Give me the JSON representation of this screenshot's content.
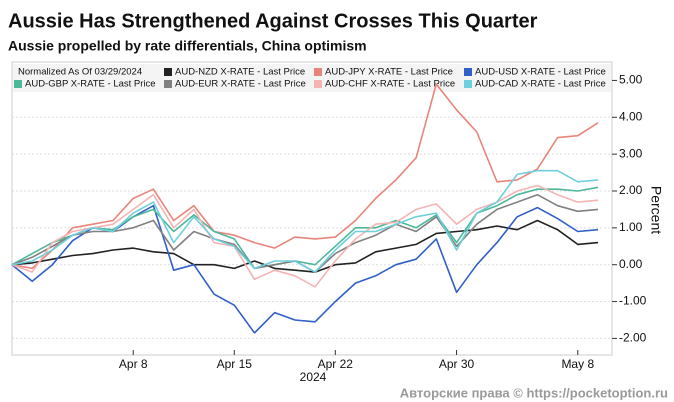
{
  "chart_data": {
    "type": "line",
    "title": "Aussie Has Strengthened Against Crosses This Quarter",
    "subtitle": "Aussie propelled by rate differentials, China optimism",
    "legend_title": "Normalized As Of 03/29/2024",
    "legend_position": "top",
    "y_label": "Percent",
    "x_note": "2024",
    "watermark": "Авторские права © https://pocketoption.ru",
    "grid": true,
    "categories": [
      null,
      null,
      null,
      null,
      null,
      null,
      "Apr 8",
      null,
      null,
      null,
      null,
      "Apr 15",
      null,
      null,
      null,
      null,
      "Apr 22",
      null,
      null,
      null,
      null,
      null,
      "Apr 30",
      null,
      null,
      null,
      null,
      null,
      "May 8",
      null
    ],
    "ylim": [
      -2.45,
      5.5
    ],
    "yticks": [
      {
        "value": 5,
        "label": "5.00"
      },
      {
        "value": 4,
        "label": "4.00"
      },
      {
        "value": 3,
        "label": "3.00"
      },
      {
        "value": 2,
        "label": "2.00"
      },
      {
        "value": 1,
        "label": "1.00"
      },
      {
        "value": 0,
        "label": "0.00"
      },
      {
        "value": -1,
        "label": "-1.00"
      },
      {
        "value": -2,
        "label": "-2.00"
      }
    ],
    "series": [
      {
        "name": "AUD-NZD X-RATE - Last Price",
        "color": "#222222",
        "values": [
          0,
          0.05,
          0.15,
          0.25,
          0.3,
          0.4,
          0.45,
          0.35,
          0.3,
          0.0,
          0.0,
          -0.1,
          0.1,
          -0.1,
          -0.15,
          -0.2,
          0.0,
          0.05,
          0.35,
          0.45,
          0.55,
          0.85,
          0.9,
          0.95,
          1.05,
          0.95,
          1.2,
          0.95,
          0.55,
          0.6
        ]
      },
      {
        "name": "AUD-JPY X-RATE - Last Price",
        "color": "#e8857a",
        "values": [
          0,
          -0.1,
          0.4,
          1.0,
          1.1,
          1.2,
          1.8,
          2.05,
          1.2,
          1.6,
          0.9,
          0.8,
          0.6,
          0.45,
          0.75,
          0.7,
          0.75,
          1.2,
          1.8,
          2.3,
          2.9,
          4.9,
          4.2,
          3.6,
          2.25,
          2.3,
          2.6,
          3.45,
          3.5,
          3.85
        ]
      },
      {
        "name": "AUD-USD X-RATE - Last Price",
        "color": "#3060c8",
        "values": [
          0,
          -0.45,
          0.0,
          0.65,
          1.0,
          0.9,
          1.3,
          1.6,
          -0.15,
          0.0,
          -0.8,
          -1.1,
          -1.85,
          -1.3,
          -1.5,
          -1.55,
          -1.0,
          -0.5,
          -0.3,
          0.0,
          0.15,
          0.7,
          -0.75,
          0.0,
          0.6,
          1.3,
          1.55,
          1.25,
          0.9,
          0.95
        ]
      },
      {
        "name": "AUD-GBP X-RATE - Last Price",
        "color": "#4db89a",
        "values": [
          0,
          0.3,
          0.6,
          0.8,
          1.0,
          0.95,
          1.3,
          1.5,
          0.9,
          1.35,
          0.9,
          0.7,
          -0.1,
          0.0,
          0.1,
          0.0,
          0.5,
          1.0,
          1.0,
          1.2,
          1.0,
          1.35,
          0.6,
          1.4,
          1.6,
          1.9,
          2.05,
          2.05,
          2.0,
          2.1
        ]
      },
      {
        "name": "AUD-EUR X-RATE - Last Price",
        "color": "#808080",
        "values": [
          0,
          0.2,
          0.5,
          0.8,
          0.9,
          0.9,
          1.0,
          1.2,
          0.4,
          0.9,
          0.7,
          0.55,
          -0.1,
          0.0,
          0.1,
          -0.2,
          0.3,
          0.6,
          0.8,
          1.1,
          0.9,
          1.3,
          0.5,
          1.1,
          1.5,
          1.7,
          1.9,
          1.6,
          1.45,
          1.5
        ]
      },
      {
        "name": "AUD-CHF X-RATE - Last Price",
        "color": "#f4b4b4",
        "values": [
          0,
          -0.2,
          0.6,
          0.9,
          1.0,
          1.1,
          1.5,
          1.9,
          1.0,
          1.5,
          0.6,
          0.5,
          -0.4,
          -0.15,
          -0.3,
          -0.6,
          0.1,
          0.7,
          1.1,
          1.15,
          1.5,
          1.65,
          1.1,
          1.5,
          1.7,
          2.0,
          2.15,
          1.9,
          1.7,
          1.75
        ]
      },
      {
        "name": "AUD-CAD X-RATE - Last Price",
        "color": "#6fcfdc",
        "values": [
          0,
          0.1,
          0.4,
          0.8,
          1.0,
          0.9,
          1.4,
          1.7,
          0.6,
          1.3,
          0.7,
          0.5,
          -0.1,
          0.1,
          0.1,
          -0.2,
          0.4,
          0.9,
          0.9,
          1.1,
          1.3,
          1.4,
          0.4,
          1.4,
          1.7,
          2.45,
          2.55,
          2.55,
          2.25,
          2.3
        ]
      }
    ]
  }
}
